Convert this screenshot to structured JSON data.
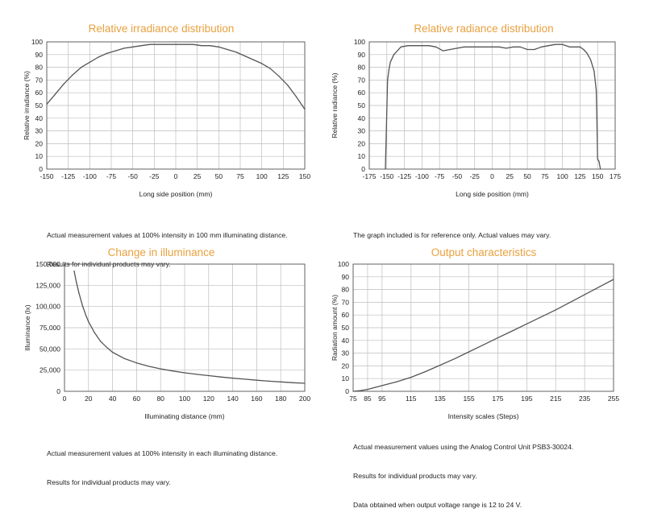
{
  "charts": [
    {
      "title": "Relative irradiance distribution",
      "notes": [
        "Actual measurement values at 100% intensity in 100 mm illuminating distance.",
        "Results for individual products may vary."
      ]
    },
    {
      "title": "Relative radiance distribution",
      "notes": [
        "The graph included is for reference only. Actual values may vary."
      ]
    },
    {
      "title": "Change in illuminance",
      "notes": [
        "Actual measurement values at 100% intensity in each illuminating distance.",
        "Results for individual products may vary."
      ]
    },
    {
      "title": "Output characteristics",
      "notes": [
        "Actual measurement values using the Analog Control Unit PSB3-30024.",
        "Results for individual products may vary.",
        "Data obtained when output voltage range is 12 to 24 V."
      ]
    }
  ],
  "chart_data": [
    {
      "type": "line",
      "title": "Relative irradiance distribution",
      "xlabel": "Long side position (mm)",
      "ylabel": "Relative irradiance (%)",
      "xlim": [
        -150,
        150
      ],
      "ylim": [
        0,
        100
      ],
      "xticks": [
        -150,
        -125,
        -100,
        -75,
        -50,
        -25,
        0,
        25,
        50,
        75,
        100,
        125,
        150
      ],
      "yticks": [
        0,
        10,
        20,
        30,
        40,
        50,
        60,
        70,
        80,
        90,
        100
      ],
      "grid": true,
      "line_color": "#555555",
      "x": [
        -150,
        -140,
        -130,
        -120,
        -110,
        -100,
        -90,
        -80,
        -70,
        -60,
        -50,
        -40,
        -30,
        -20,
        -10,
        0,
        10,
        20,
        30,
        40,
        50,
        60,
        70,
        80,
        90,
        100,
        110,
        120,
        130,
        140,
        150
      ],
      "y": [
        51,
        59,
        67,
        74,
        80,
        84,
        88,
        91,
        93,
        95,
        96,
        97,
        98,
        98,
        98,
        98,
        98,
        98,
        97,
        97,
        96,
        94,
        92,
        89,
        86,
        83,
        79,
        73,
        66,
        57,
        47
      ]
    },
    {
      "type": "line",
      "title": "Relative radiance distribution",
      "xlabel": "Long side position (mm)",
      "ylabel": "Relative radiance (%)",
      "xlim": [
        -175,
        175
      ],
      "ylim": [
        0,
        100
      ],
      "xticks": [
        -175,
        -150,
        -125,
        -100,
        -75,
        -50,
        -25,
        0,
        25,
        50,
        75,
        100,
        125,
        150,
        175
      ],
      "yticks": [
        0,
        10,
        20,
        30,
        40,
        50,
        60,
        70,
        80,
        90,
        100
      ],
      "grid": true,
      "line_color": "#555555",
      "x": [
        -152,
        -149,
        -147,
        -145,
        -140,
        -135,
        -130,
        -120,
        -110,
        -100,
        -90,
        -80,
        -70,
        -60,
        -50,
        -40,
        -30,
        -20,
        -10,
        0,
        10,
        20,
        30,
        40,
        50,
        60,
        70,
        80,
        90,
        100,
        110,
        120,
        125,
        130,
        135,
        140,
        145,
        148,
        149,
        150,
        152,
        154
      ],
      "y": [
        0,
        70,
        78,
        84,
        90,
        93,
        96,
        97,
        97,
        97,
        97,
        96,
        93,
        94,
        95,
        96,
        96,
        96,
        96,
        96,
        96,
        95,
        96,
        96,
        94,
        94,
        96,
        97,
        98,
        98,
        96,
        96,
        96,
        94,
        91,
        86,
        77,
        62,
        40,
        8,
        6,
        0
      ]
    },
    {
      "type": "line",
      "title": "Change in illuminance",
      "xlabel": "Illuminating distance (mm)",
      "ylabel": "Illuminance (lx)",
      "xlim": [
        0,
        200
      ],
      "ylim": [
        0,
        150000
      ],
      "xticks": [
        0,
        20,
        40,
        60,
        80,
        100,
        120,
        140,
        160,
        180,
        200
      ],
      "yticks": [
        0,
        25000,
        50000,
        75000,
        100000,
        125000,
        150000
      ],
      "ytick_labels": [
        "0",
        "25,000",
        "50,000",
        "75,000",
        "100,000",
        "125,000",
        "150,000"
      ],
      "grid": true,
      "line_color": "#555555",
      "x": [
        8,
        10,
        12,
        15,
        18,
        20,
        25,
        30,
        35,
        40,
        50,
        60,
        70,
        80,
        90,
        100,
        110,
        120,
        130,
        140,
        150,
        160,
        170,
        180,
        190,
        200
      ],
      "y": [
        142000,
        128000,
        116000,
        101000,
        89000,
        82000,
        69000,
        59000,
        52000,
        46000,
        38500,
        33500,
        29500,
        26500,
        24000,
        21800,
        20000,
        18500,
        16900,
        15500,
        14300,
        13100,
        12000,
        11100,
        10200,
        9500
      ]
    },
    {
      "type": "line",
      "title": "Output characteristics",
      "xlabel": "Intensity scales (Steps)",
      "ylabel": "Radiation amount (%)",
      "xlim": [
        75,
        255
      ],
      "ylim": [
        0,
        100
      ],
      "xticks": [
        75,
        85,
        95,
        115,
        135,
        155,
        175,
        195,
        215,
        235,
        255
      ],
      "yticks": [
        0,
        10,
        20,
        30,
        40,
        50,
        60,
        70,
        80,
        90,
        100
      ],
      "grid": true,
      "line_color": "#555555",
      "x": [
        75,
        80,
        85,
        90,
        95,
        100,
        105,
        115,
        125,
        135,
        145,
        155,
        165,
        175,
        185,
        195,
        205,
        215,
        225,
        235,
        245,
        255
      ],
      "y": [
        0,
        0.5,
        1.5,
        3,
        4.5,
        6,
        7.5,
        11,
        15.5,
        20.5,
        25.5,
        31,
        36.5,
        42,
        47.5,
        53,
        58.5,
        64,
        70,
        76,
        82,
        88
      ]
    }
  ]
}
